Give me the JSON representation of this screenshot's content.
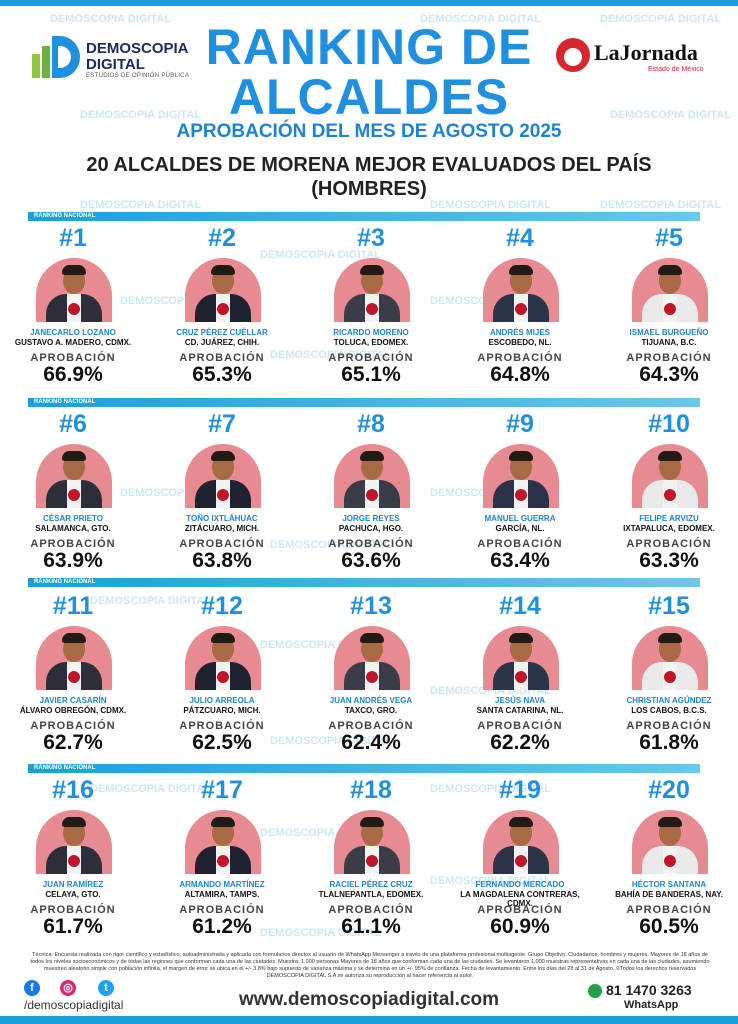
{
  "header": {
    "logo_left_line1": "DEMOSCOPIA",
    "logo_left_line2": "DIGITAL",
    "logo_left_tagline": "ESTUDIOS DE OPINIÓN PÚBLICA",
    "title_line1": "RANKING DE",
    "title_line2": "ALCALDES",
    "subtitle": "APROBACIÓN DEL MES DE AGOSTO 2025",
    "heading_line1": "20 ALCALDES DE MORENA MEJOR EVALUADOS DEL PAÍS",
    "heading_line2": "(HOMBRES)",
    "logo_right_name": "LaJornada",
    "logo_right_sub": "Estado de México"
  },
  "band_label": "RANKING NACIONAL",
  "approval_label": "APROBACIÓN",
  "watermark": "DEMOSCOPIA DIGITAL",
  "mayors": [
    {
      "rank": "#1",
      "name": "JANECARLO LOZANO",
      "place": "GUSTAVO A. MADERO, CDMX.",
      "approval": "66.9%"
    },
    {
      "rank": "#2",
      "name": "CRUZ PÉREZ CUÉLLAR",
      "place": "CD. JUÁREZ, CHIH.",
      "approval": "65.3%"
    },
    {
      "rank": "#3",
      "name": "RICARDO MORENO",
      "place": "TOLUCA, EDOMEX.",
      "approval": "65.1%"
    },
    {
      "rank": "#4",
      "name": "ANDRÉS MIJES",
      "place": "ESCOBEDO, NL.",
      "approval": "64.8%"
    },
    {
      "rank": "#5",
      "name": "ISMAEL BURGUEÑO",
      "place": "TIJUANA, B.C.",
      "approval": "64.3%"
    },
    {
      "rank": "#6",
      "name": "CÉSAR PRIETO",
      "place": "SALAMANCA, GTO.",
      "approval": "63.9%"
    },
    {
      "rank": "#7",
      "name": "TOÑO IXTLÁHUAC",
      "place": "ZITÁCUARO, MICH.",
      "approval": "63.8%"
    },
    {
      "rank": "#8",
      "name": "JORGE REYES",
      "place": "PACHUCA, HGO.",
      "approval": "63.6%"
    },
    {
      "rank": "#9",
      "name": "MANUEL GUERRA",
      "place": "GARCÍA, NL.",
      "approval": "63.4%"
    },
    {
      "rank": "#10",
      "name": "FELIPE ARVIZU",
      "place": "IXTAPALUCA, EDOMEX.",
      "approval": "63.3%"
    },
    {
      "rank": "#11",
      "name": "JAVIER CASARÍN",
      "place": "ÁLVARO OBREGÓN, CDMX.",
      "approval": "62.7%"
    },
    {
      "rank": "#12",
      "name": "JULIO ARREOLA",
      "place": "PÁTZCUARO, MICH.",
      "approval": "62.5%"
    },
    {
      "rank": "#13",
      "name": "JUAN ANDRÉS VEGA",
      "place": "TAXCO, GRO.",
      "approval": "62.4%"
    },
    {
      "rank": "#14",
      "name": "JESÚS NAVA",
      "place": "SANTA CATARINA, NL.",
      "approval": "62.2%"
    },
    {
      "rank": "#15",
      "name": "CHRISTIAN AGÚNDEZ",
      "place": "LOS CABOS, B.C.S.",
      "approval": "61.8%"
    },
    {
      "rank": "#16",
      "name": "JUAN RAMÍREZ",
      "place": "CELAYA, GTO.",
      "approval": "61.7%"
    },
    {
      "rank": "#17",
      "name": "ARMANDO MARTÍNEZ",
      "place": "ALTAMIRA, TAMPS.",
      "approval": "61.2%"
    },
    {
      "rank": "#18",
      "name": "RACIEL PÉREZ CRUZ",
      "place": "TLALNEPANTLA, EDOMEX.",
      "approval": "61.1%"
    },
    {
      "rank": "#19",
      "name": "FERNANDO MERCADO",
      "place": "LA MAGDALENA CONTRERAS, CDMX.",
      "approval": "60.9%"
    },
    {
      "rank": "#20",
      "name": "HÉCTOR SANTANA",
      "place": "BAHÍA DE BANDERAS, NAY.",
      "approval": "60.5%"
    }
  ],
  "footer": {
    "note": "Técnica: Encuesta realizada con rigor científico y estadístico, autoadministrada y aplicada con formularios directos al usuario de WhatsApp Messenger a través de una plataforma profesional multiagente. Grupo Objetivo: Ciudadanos, hombres y mujeres, Mayores de 18 años de todos los niveles socioeconómicos y de todas las regiones que conforman cada una de las ciudades. Muestra: 1,000 personas Mayores de 18 años que conforman cada una de las ciudades. Se levantaron 1,000 muestras representativas en cada una de las ciudades, asumiendo muestreo aleatorio simple con población infinita, el margen de error se ubica en el +/- 3.8% bajo supuesto de varianza máxima y se determina en un +/- 95% de confianza. Fecha de levantamiento: Entre los días del 28 al 31 de Agosto. ©Todos los derechos reservados DEMOSCOPIA DIGITAL S.A se autoriza su reproducción al hacer referencia al autor.",
    "handle": "/demoscopiadigital",
    "website": "www.demoscopiadigital.com",
    "phone": "81 1470 3263",
    "whatsapp_label": "WhatsApp"
  },
  "colors": {
    "title_blue": "#1f8fe0",
    "band_blue": "#1aa0d8",
    "photo_pink": "#e88a92",
    "badge_red": "#c3152a"
  }
}
